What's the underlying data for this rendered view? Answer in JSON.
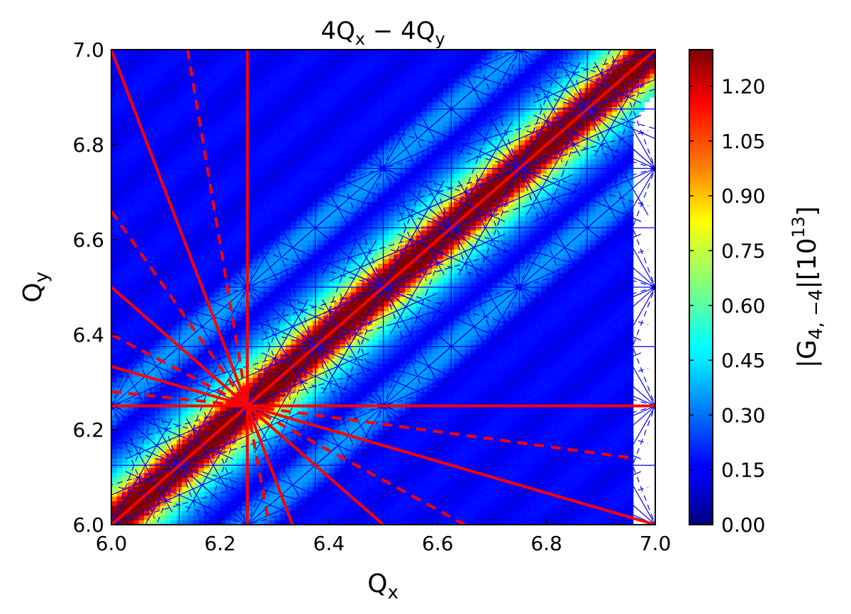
{
  "chart_data": {
    "type": "heatmap",
    "title": "4Q",
    "title_sub_1": "x",
    "title_mid": " − 4Q",
    "title_sub_2": "y",
    "xlabel": "Q",
    "xlabel_sub": "x",
    "ylabel": "Q",
    "ylabel_sub": "y",
    "colorbar_label_pre": "|G",
    "colorbar_label_sub": "4, −4",
    "colorbar_label_mid": "|[10",
    "colorbar_label_sup": "13",
    "colorbar_label_post": "]",
    "xlim": [
      6.0,
      7.0
    ],
    "ylim": [
      6.0,
      7.0
    ],
    "xticks": [
      "6.0",
      "6.2",
      "6.4",
      "6.6",
      "6.8",
      "7.0"
    ],
    "yticks": [
      "6.0",
      "6.2",
      "6.4",
      "6.6",
      "6.8",
      "7.0"
    ],
    "colorbar_range": [
      0.0,
      1.3
    ],
    "colorbar_ticks": [
      "0.00",
      "0.15",
      "0.30",
      "0.45",
      "0.60",
      "0.75",
      "0.90",
      "1.05",
      "1.20"
    ],
    "colormap": "jet",
    "heatmap_peak": 1.3,
    "heatmap_description_period": 0.25,
    "red_resonance_point": [
      6.25,
      6.25
    ],
    "red_lines_solid": [
      [
        [
          6.25,
          6.0
        ],
        [
          6.25,
          7.0
        ]
      ],
      [
        [
          6.0,
          6.25
        ],
        [
          7.0,
          6.25
        ]
      ],
      [
        [
          6.0,
          6.0
        ],
        [
          7.0,
          7.0
        ]
      ],
      [
        [
          6.0,
          7.0
        ],
        [
          6.25,
          6.25
        ]
      ],
      [
        [
          6.0,
          6.5
        ],
        [
          6.25,
          6.25
        ]
      ],
      [
        [
          6.0,
          6.333
        ],
        [
          6.25,
          6.25
        ]
      ],
      [
        [
          6.25,
          6.25
        ],
        [
          7.0,
          6.0
        ]
      ],
      [
        [
          6.25,
          6.25
        ],
        [
          6.5,
          6.0
        ]
      ],
      [
        [
          6.25,
          6.25
        ],
        [
          6.333,
          6.0
        ]
      ]
    ],
    "red_lines_dashed": [
      [
        [
          6.14,
          7.0
        ],
        [
          6.25,
          6.25
        ]
      ],
      [
        [
          6.0,
          6.66
        ],
        [
          6.25,
          6.25
        ]
      ],
      [
        [
          6.0,
          6.4
        ],
        [
          6.25,
          6.25
        ]
      ],
      [
        [
          6.0,
          6.28
        ],
        [
          6.25,
          6.25
        ]
      ],
      [
        [
          6.25,
          6.25
        ],
        [
          6.29,
          6.0
        ]
      ],
      [
        [
          6.25,
          6.25
        ],
        [
          6.65,
          6.0
        ]
      ],
      [
        [
          6.25,
          6.25
        ],
        [
          6.96,
          6.14
        ]
      ]
    ],
    "blue_grid_nodes": [
      6.0,
      6.125,
      6.25,
      6.375,
      6.5,
      6.625,
      6.75,
      6.875,
      7.0
    ],
    "colors": {
      "resonance_red": "#ff0000",
      "resonance_blue": "#0000ff",
      "background": "#ffffff"
    }
  }
}
